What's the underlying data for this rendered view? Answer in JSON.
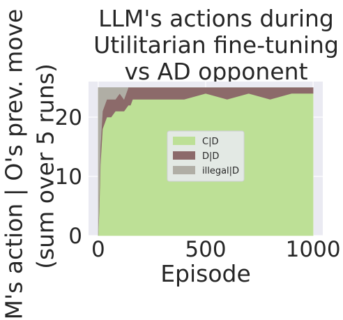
{
  "chart_data": {
    "type": "area",
    "title": [
      "LLM's actions during",
      "Utilitarian fine-tuning",
      "vs AD opponent"
    ],
    "xlabel": "Episode",
    "ylabel": [
      "M's action | O's prev. move",
      "(sum over 5 runs)"
    ],
    "xlim": [
      -45,
      1045
    ],
    "ylim": [
      0,
      26
    ],
    "xticks": [
      "0",
      "500",
      "1000"
    ],
    "yticks": [
      "0",
      "10",
      "20"
    ],
    "grid": true,
    "legend_position": "center",
    "x": [
      0,
      5,
      10,
      20,
      30,
      40,
      50,
      60,
      80,
      100,
      120,
      140,
      150,
      160,
      200,
      300,
      400,
      500,
      600,
      700,
      800,
      900,
      1000
    ],
    "stack_total": 25,
    "series": [
      {
        "name": "C|D",
        "color": "#bde096",
        "values": [
          0,
          5,
          12,
          18,
          19,
          20,
          20,
          20,
          21,
          21,
          21,
          22,
          22,
          23,
          23,
          23,
          23,
          24,
          23,
          24,
          23,
          24,
          24
        ]
      },
      {
        "name": "D|D",
        "color": "#8c6a6a",
        "values": [
          0,
          2,
          3,
          3,
          3,
          3,
          3,
          3,
          2,
          3,
          2,
          3,
          3,
          2,
          2,
          2,
          2,
          1,
          2,
          1,
          2,
          1,
          1
        ]
      },
      {
        "name": "illegal|D",
        "color": "#b0aea5",
        "values": [
          25,
          18,
          10,
          4,
          3,
          2,
          2,
          2,
          2,
          1,
          2,
          0,
          0,
          0,
          0,
          0,
          0,
          0,
          0,
          0,
          0,
          0,
          0
        ]
      }
    ]
  }
}
